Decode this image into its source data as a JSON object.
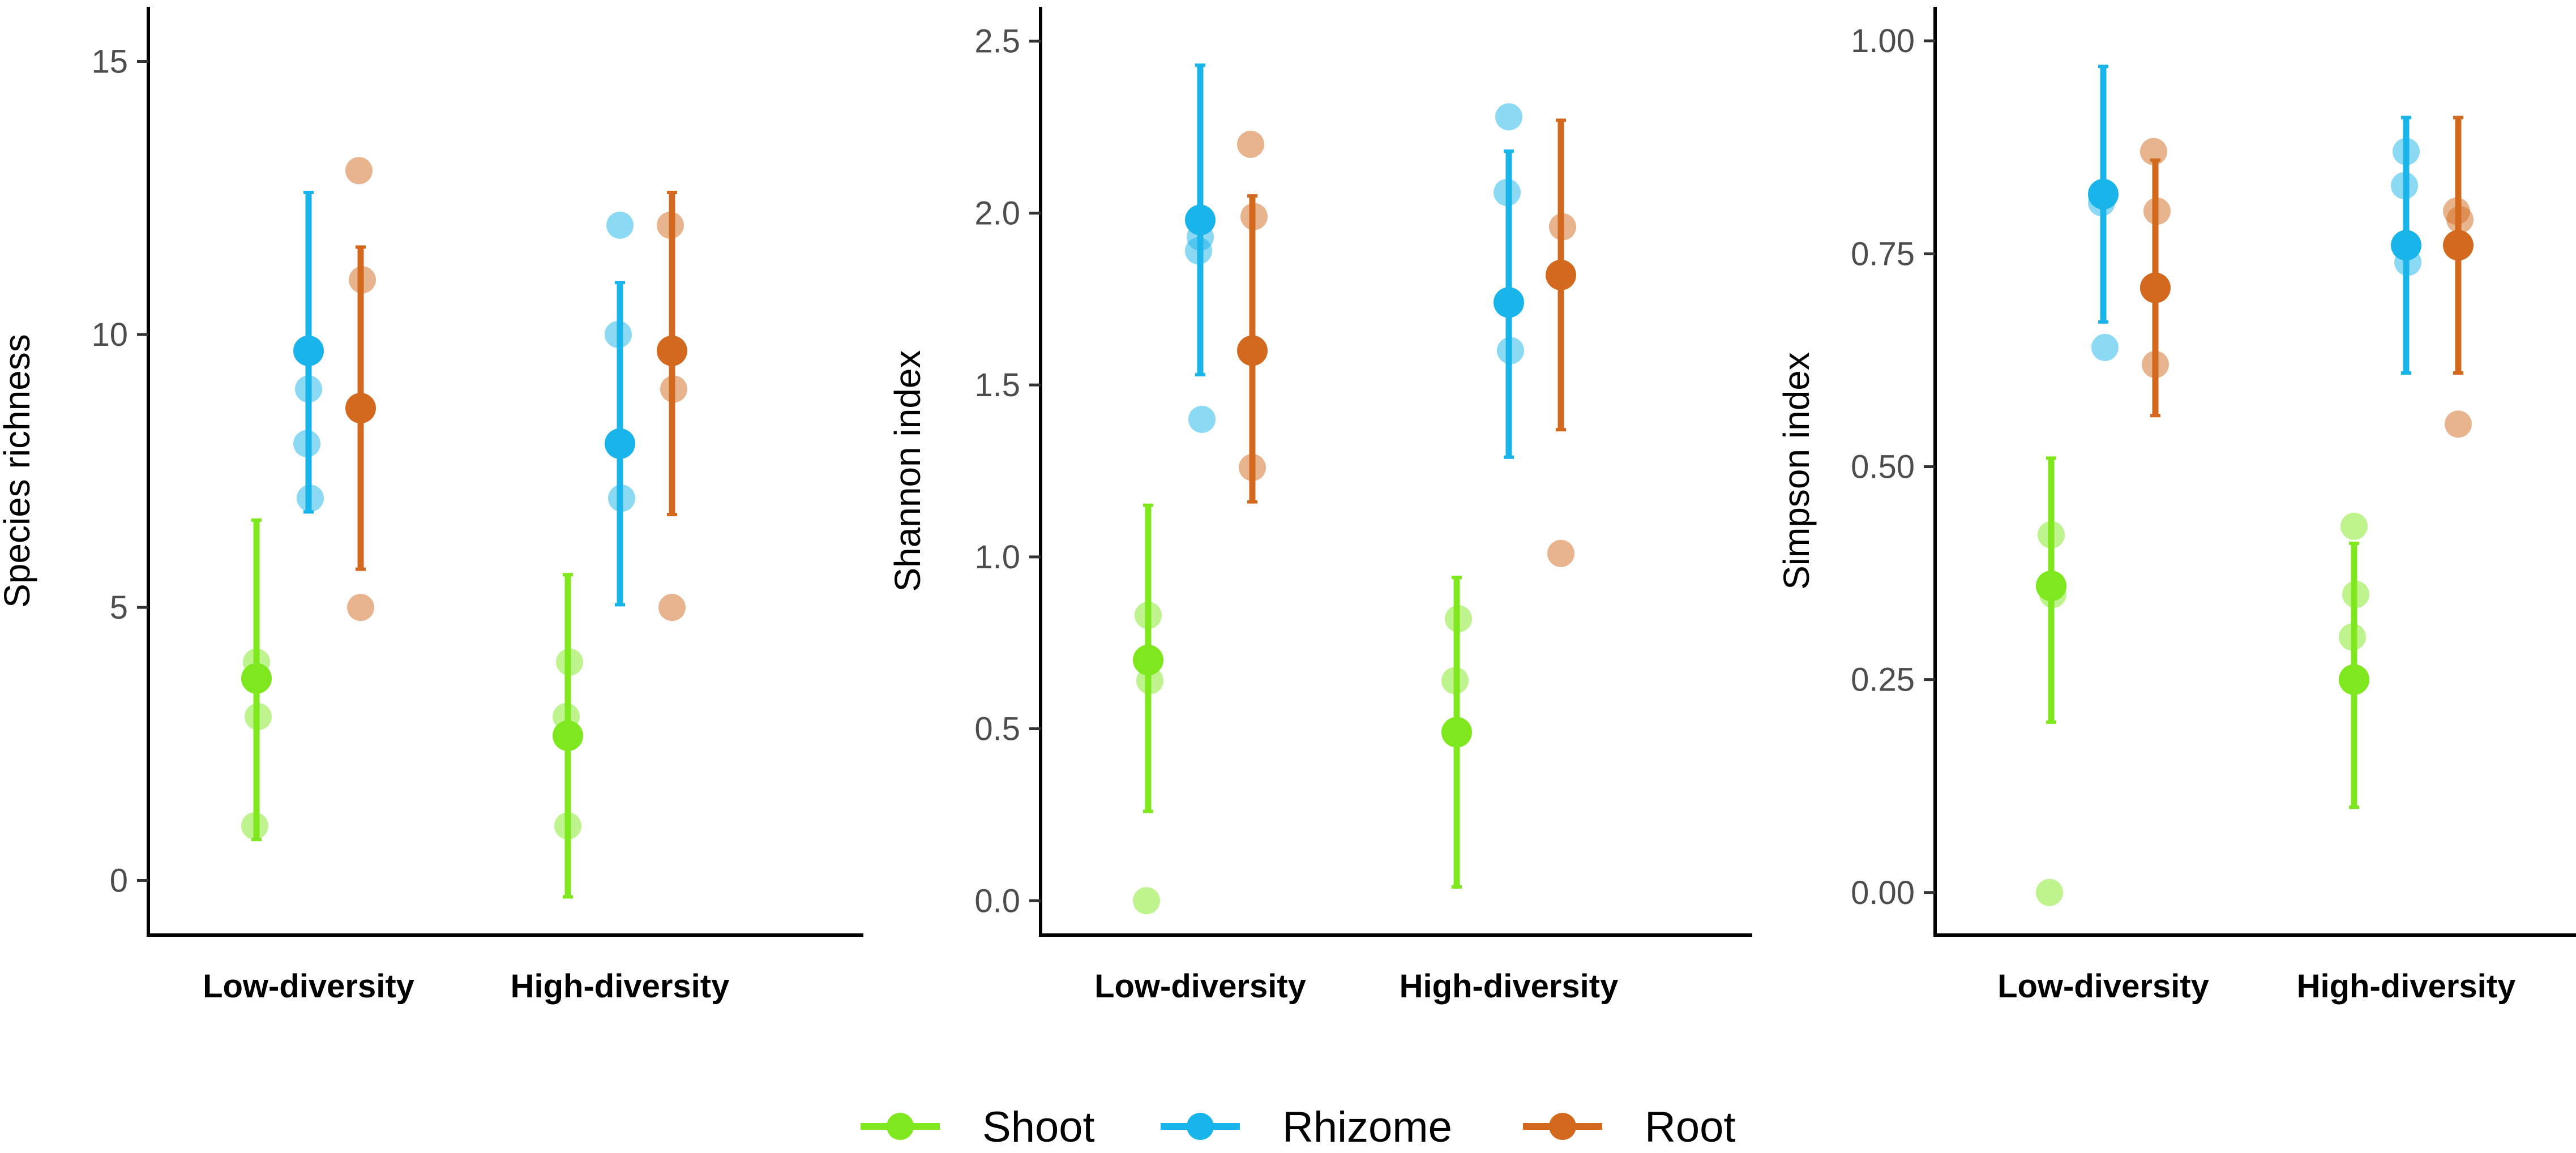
{
  "chart_data": [
    {
      "type": "scatter",
      "title": "",
      "xlabel": "",
      "ylabel": "Species richness",
      "ylim": [
        -1,
        16
      ],
      "yticks": [
        0,
        5,
        10,
        15
      ],
      "ytick_labels": [
        "0",
        "5",
        "10",
        "15"
      ],
      "categories": [
        "Low-diversity",
        "High-diversity"
      ],
      "series": [
        {
          "name": "Shoot",
          "means": [
            3.7,
            2.65
          ],
          "error_low": [
            0.75,
            -0.3
          ],
          "error_high": [
            6.6,
            5.6
          ],
          "points": [
            [
              1,
              3,
              4
            ],
            [
              3,
              4,
              1
            ]
          ]
        },
        {
          "name": "Rhizome",
          "means": [
            9.7,
            8.0
          ],
          "error_low": [
            6.75,
            5.05
          ],
          "error_high": [
            12.6,
            10.95
          ],
          "points": [
            [
              7,
              8,
              9
            ],
            [
              7,
              10,
              12
            ]
          ]
        },
        {
          "name": "Root",
          "means": [
            8.65,
            9.7
          ],
          "error_low": [
            5.7,
            6.7
          ],
          "error_high": [
            11.6,
            12.6
          ],
          "points": [
            [
              5,
              11,
              13
            ],
            [
              5,
              9,
              12
            ]
          ]
        }
      ]
    },
    {
      "type": "scatter",
      "title": "",
      "xlabel": "",
      "ylabel": "Shannon index",
      "ylim": [
        -0.1,
        2.6
      ],
      "yticks": [
        0.0,
        0.5,
        1.0,
        1.5,
        2.0,
        2.5
      ],
      "ytick_labels": [
        "0.0",
        "0.5",
        "1.0",
        "1.5",
        "2.0",
        "2.5"
      ],
      "categories": [
        "Low-diversity",
        "High-diversity"
      ],
      "series": [
        {
          "name": "Shoot",
          "means": [
            0.7,
            0.49
          ],
          "error_low": [
            0.26,
            0.04
          ],
          "error_high": [
            1.15,
            0.94
          ],
          "points": [
            [
              0.0,
              0.64,
              0.83
            ],
            [
              0.64,
              0.82,
              0.49
            ]
          ]
        },
        {
          "name": "Rhizome",
          "means": [
            1.98,
            1.74
          ],
          "error_low": [
            1.53,
            1.29
          ],
          "error_high": [
            2.43,
            2.18
          ],
          "points": [
            [
              1.4,
              1.89,
              1.93
            ],
            [
              1.6,
              2.06,
              2.28
            ]
          ]
        },
        {
          "name": "Root",
          "means": [
            1.6,
            1.82
          ],
          "error_low": [
            1.16,
            1.37
          ],
          "error_high": [
            2.05,
            2.27
          ],
          "points": [
            [
              1.26,
              1.99,
              2.2
            ],
            [
              1.01,
              1.96,
              1.82
            ]
          ]
        }
      ]
    },
    {
      "type": "scatter",
      "title": "",
      "xlabel": "",
      "ylabel": "Simpson index",
      "ylim": [
        -0.05,
        1.04
      ],
      "yticks": [
        0.0,
        0.25,
        0.5,
        0.75,
        1.0
      ],
      "ytick_labels": [
        "0.00",
        "0.25",
        "0.50",
        "0.75",
        "1.00"
      ],
      "categories": [
        "Low-diversity",
        "High-diversity"
      ],
      "series": [
        {
          "name": "Shoot",
          "means": [
            0.36,
            0.25
          ],
          "error_low": [
            0.2,
            0.1
          ],
          "error_high": [
            0.51,
            0.41
          ],
          "points": [
            [
              0.0,
              0.35,
              0.42
            ],
            [
              0.3,
              0.35,
              0.43
            ]
          ]
        },
        {
          "name": "Rhizome",
          "means": [
            0.82,
            0.76
          ],
          "error_low": [
            0.67,
            0.61
          ],
          "error_high": [
            0.97,
            0.91
          ],
          "points": [
            [
              0.64,
              0.81,
              0.82
            ],
            [
              0.74,
              0.83,
              0.87
            ]
          ]
        },
        {
          "name": "Root",
          "means": [
            0.71,
            0.76
          ],
          "error_low": [
            0.56,
            0.61
          ],
          "error_high": [
            0.86,
            0.91
          ],
          "points": [
            [
              0.62,
              0.8,
              0.87
            ],
            [
              0.55,
              0.79,
              0.8
            ]
          ]
        }
      ]
    }
  ],
  "legend": {
    "position": "bottom",
    "items": [
      {
        "label": "Shoot",
        "color": "#7ee71d"
      },
      {
        "label": "Rhizome",
        "color": "#19b4ea"
      },
      {
        "label": "Root",
        "color": "#d2691e"
      }
    ]
  },
  "colors": {
    "Shoot": "#7ee71d",
    "Rhizome": "#19b4ea",
    "Root": "#d2691e"
  }
}
